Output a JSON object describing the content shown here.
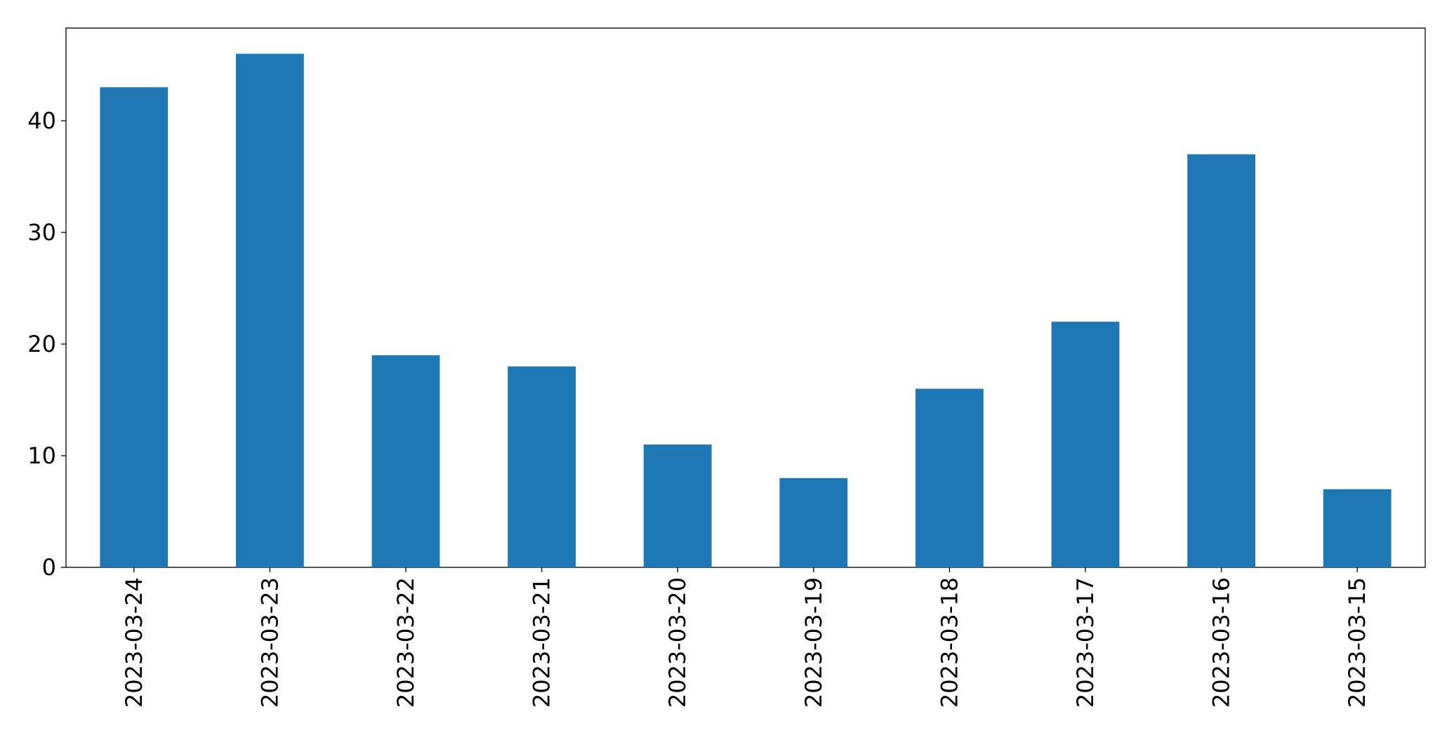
{
  "chart_data": {
    "type": "bar",
    "categories": [
      "2023-03-24",
      "2023-03-23",
      "2023-03-22",
      "2023-03-21",
      "2023-03-20",
      "2023-03-19",
      "2023-03-18",
      "2023-03-17",
      "2023-03-16",
      "2023-03-15"
    ],
    "values": [
      43,
      46,
      19,
      18,
      11,
      8,
      16,
      22,
      37,
      7
    ],
    "color": "#1f77b4",
    "ylim": [
      0,
      48.3
    ],
    "yticks": [
      0,
      10,
      20,
      30,
      40
    ],
    "grid": false
  }
}
